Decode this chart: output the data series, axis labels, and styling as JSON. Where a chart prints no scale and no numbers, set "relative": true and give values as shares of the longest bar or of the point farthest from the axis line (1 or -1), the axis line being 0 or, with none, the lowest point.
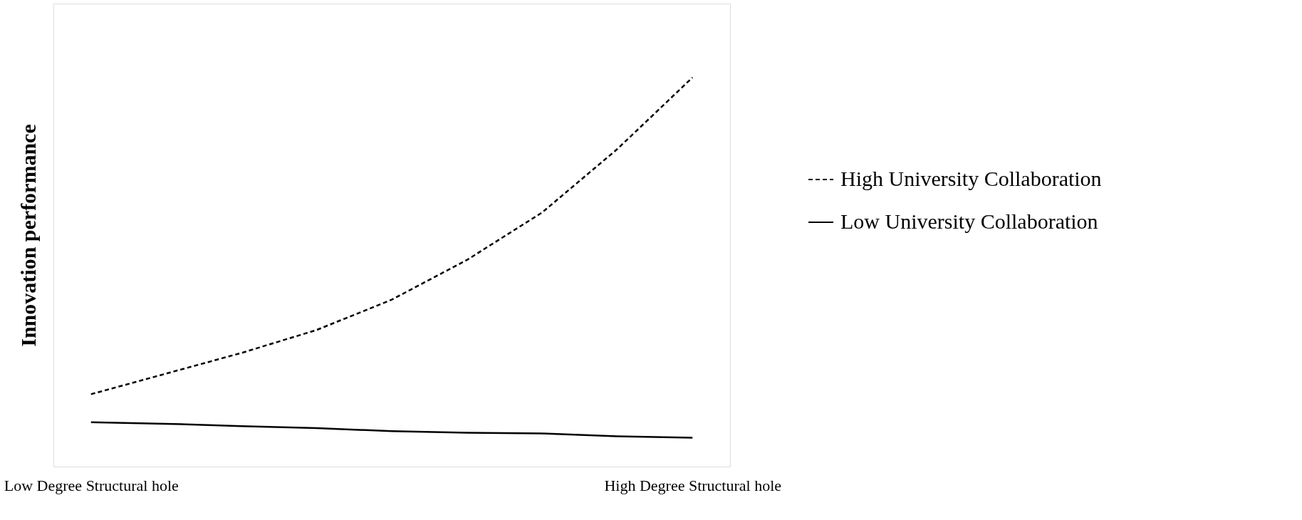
{
  "chart_data": {
    "type": "line",
    "relative": true,
    "ylabel": "Innovation performance",
    "legend": "right",
    "categories": [
      "Low Degree Structural hole",
      null,
      null,
      null,
      null,
      null,
      null,
      null,
      "High Degree Structural hole"
    ],
    "series": [
      {
        "name": "High University Collaboration",
        "color": "#000000",
        "line_style": "dashed",
        "values": [
          0.186,
          0.239,
          0.292,
          0.351,
          0.429,
          0.531,
          0.653,
          0.816,
          1
        ]
      },
      {
        "name": "Low University Collaboration",
        "color": "#000000",
        "line_style": "solid",
        "values": [
          0.114,
          0.11,
          0.104,
          0.099,
          0.091,
          0.087,
          0.085,
          0.078,
          0.074
        ]
      }
    ]
  }
}
